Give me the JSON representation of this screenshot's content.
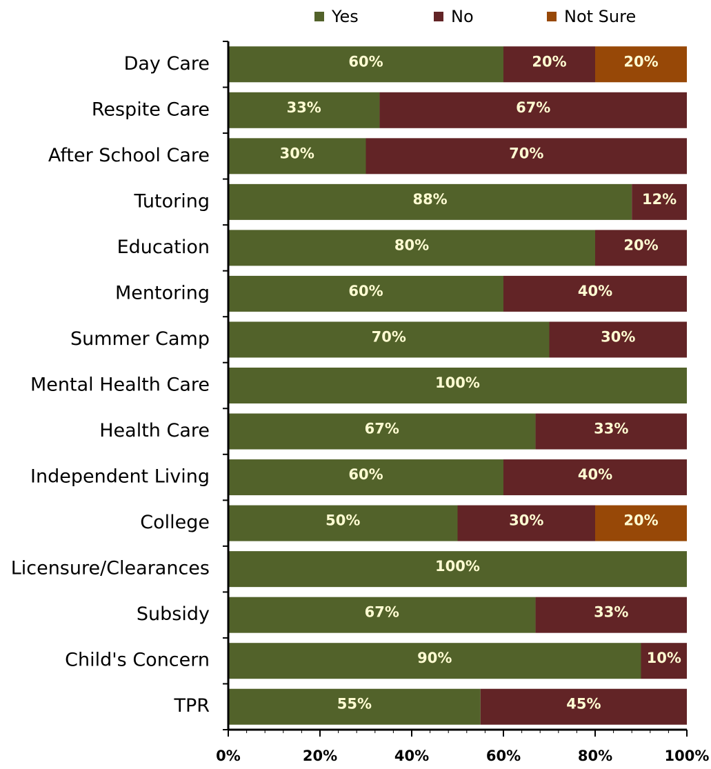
{
  "chart_data": {
    "type": "bar",
    "orientation": "horizontal",
    "stacked": true,
    "stack_mode": "percent",
    "categories": [
      "Day Care",
      "Respite Care",
      "After School Care",
      "Tutoring",
      "Education",
      "Mentoring",
      "Summer Camp",
      "Mental Health Care",
      "Health Care",
      "Independent Living",
      "College",
      "Licensure/Clearances",
      "Subsidy",
      "Child's Concern",
      "TPR"
    ],
    "series": [
      {
        "name": "Yes",
        "color": "#52622a",
        "values": [
          60,
          33,
          30,
          88,
          80,
          60,
          70,
          100,
          67,
          60,
          50,
          100,
          67,
          90,
          55
        ]
      },
      {
        "name": "No",
        "color": "#622426",
        "values": [
          20,
          67,
          70,
          12,
          20,
          40,
          30,
          0,
          33,
          40,
          30,
          0,
          33,
          10,
          45
        ]
      },
      {
        "name": "Not Sure",
        "color": "#974807",
        "values": [
          20,
          0,
          0,
          0,
          0,
          0,
          0,
          0,
          0,
          0,
          20,
          0,
          0,
          0,
          0
        ]
      }
    ],
    "data_labels": [
      [
        "60%",
        "33%",
        "30%",
        "88%",
        "80%",
        "60%",
        "70%",
        "100%",
        "67%",
        "60%",
        "50%",
        "100%",
        "67%",
        "90%",
        "55%"
      ],
      [
        "20%",
        "67%",
        "70%",
        "12%",
        "20%",
        "40%",
        "30%",
        "",
        "33%",
        "40%",
        "30%",
        "",
        "33%",
        "10%",
        "45%"
      ],
      [
        "20%",
        "",
        "",
        "",
        "",
        "",
        "",
        "",
        "",
        "",
        "20%",
        "",
        "",
        "",
        ""
      ]
    ],
    "xlim": [
      0,
      100
    ],
    "xticks": [
      "0%",
      "20%",
      "40%",
      "60%",
      "80%",
      "100%"
    ],
    "legend_position": "top",
    "grid": false,
    "title": "",
    "xlabel": "",
    "ylabel": ""
  }
}
